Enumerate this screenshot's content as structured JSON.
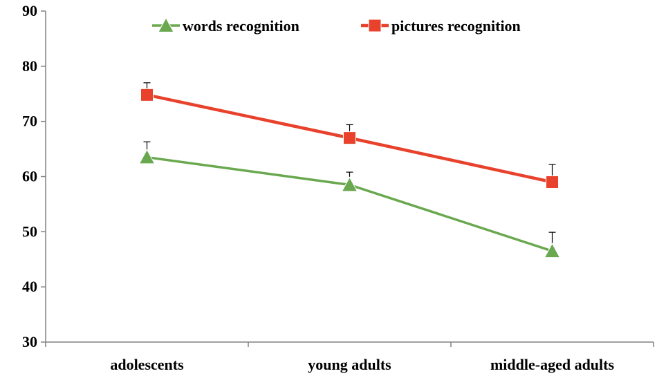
{
  "chart_data": {
    "type": "line",
    "title": "",
    "xlabel": "",
    "ylabel": "",
    "categories": [
      "adolescents",
      "young adults",
      "middle-aged adults"
    ],
    "ylim": [
      30,
      90
    ],
    "yticks": [
      "30",
      "40",
      "50",
      "60",
      "70",
      "80",
      "90"
    ],
    "grid": false,
    "legend_position": "top",
    "series": [
      {
        "name": "words recognition",
        "values": [
          63.5,
          58.5,
          46.5
        ],
        "error_upper": [
          66.3,
          60.8,
          49.9
        ],
        "color": "#6aa84f",
        "marker": "triangle"
      },
      {
        "name": "pictures recognition",
        "values": [
          74.8,
          67.0,
          59.0
        ],
        "error_upper": [
          77.0,
          69.4,
          62.2
        ],
        "color": "#e8412c",
        "marker": "square"
      }
    ]
  }
}
